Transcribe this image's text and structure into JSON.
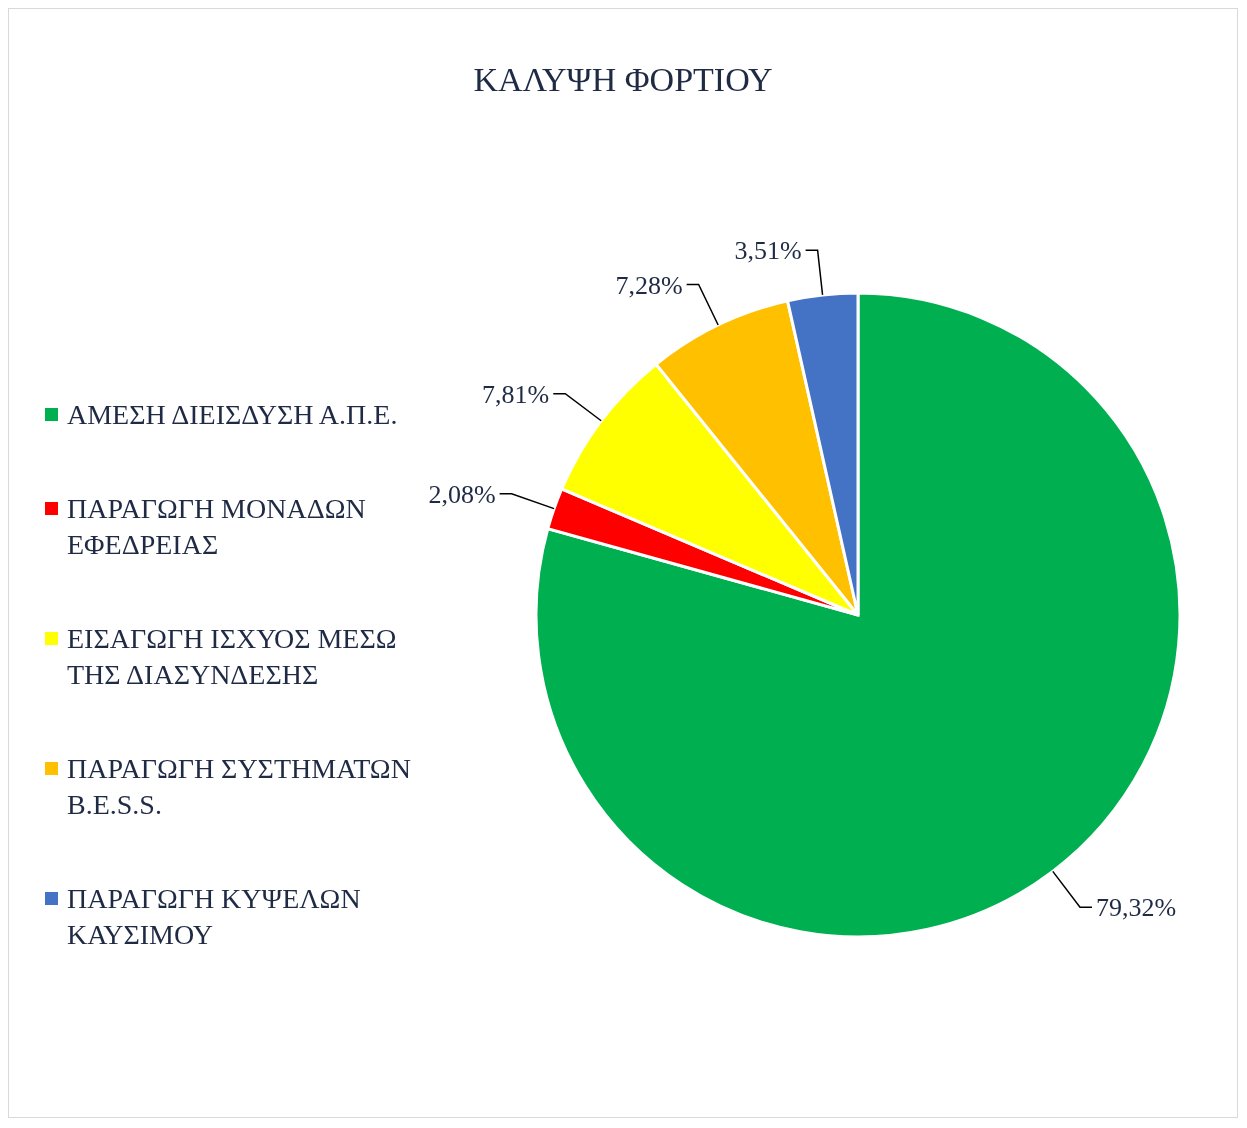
{
  "chart_data": {
    "type": "pie",
    "title": "ΚΑΛΥΨΗ ΦΟΡΤΙΟΥ",
    "categories": [
      "ΑΜΕΣΗ ΔΙΕΙΣΔΥΣΗ Α.Π.Ε.",
      "ΠΑΡΑΓΩΓΗ ΜΟΝΑΔΩΝ ΕΦΕΔΡΕΙΑΣ",
      "ΕΙΣΑΓΩΓΗ ΙΣΧΥΟΣ ΜΕΣΩ ΤΗΣ ΔΙΑΣΥΝΔΕΣΗΣ",
      "ΠΑΡΑΓΩΓΗ ΣΥΣΤΗΜΑΤΩΝ B.E.S.S.",
      "ΠΑΡΑΓΩΓΗ ΚΥΨΕΛΩΝ ΚΑΥΣΙΜΟΥ"
    ],
    "values": [
      79.32,
      2.08,
      7.81,
      7.28,
      3.51
    ],
    "colors": [
      "#00b050",
      "#ff0000",
      "#ffff00",
      "#ffc000",
      "#4472c4"
    ],
    "value_labels": [
      "79,32%",
      "2,08%",
      "7,81%",
      "7,28%",
      "3,51%"
    ],
    "legend": "left"
  }
}
